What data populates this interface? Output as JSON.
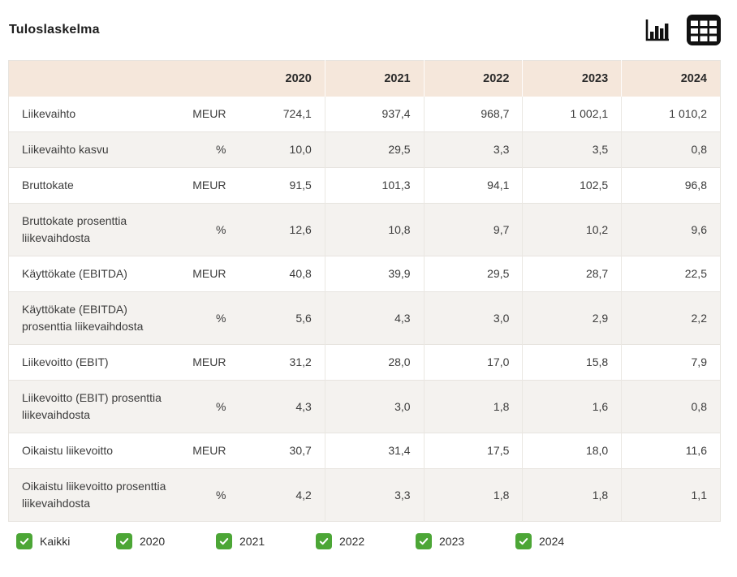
{
  "page": {
    "title": "Tuloslaskelma"
  },
  "toolbar": {
    "views": [
      {
        "id": "chart",
        "icon": "bar-chart-icon",
        "active": false
      },
      {
        "id": "table",
        "icon": "table-grid-icon",
        "active": true
      }
    ]
  },
  "table": {
    "columns": [
      "2020",
      "2021",
      "2022",
      "2023",
      "2024"
    ],
    "rows": [
      {
        "label": "Liikevaihto",
        "unit": "MEUR",
        "values": [
          "724,1",
          "937,4",
          "968,7",
          "1 002,1",
          "1 010,2"
        ]
      },
      {
        "label": "Liikevaihto kasvu",
        "unit": "%",
        "values": [
          "10,0",
          "29,5",
          "3,3",
          "3,5",
          "0,8"
        ]
      },
      {
        "label": "Bruttokate",
        "unit": "MEUR",
        "values": [
          "91,5",
          "101,3",
          "94,1",
          "102,5",
          "96,8"
        ]
      },
      {
        "label": "Bruttokate prosenttia liikevaihdosta",
        "unit": "%",
        "values": [
          "12,6",
          "10,8",
          "9,7",
          "10,2",
          "9,6"
        ]
      },
      {
        "label": "Käyttökate (EBITDA)",
        "unit": "MEUR",
        "values": [
          "40,8",
          "39,9",
          "29,5",
          "28,7",
          "22,5"
        ]
      },
      {
        "label": "Käyttökate (EBITDA) prosenttia liikevaihdosta",
        "unit": "%",
        "values": [
          "5,6",
          "4,3",
          "3,0",
          "2,9",
          "2,2"
        ]
      },
      {
        "label": "Liikevoitto (EBIT)",
        "unit": "MEUR",
        "values": [
          "31,2",
          "28,0",
          "17,0",
          "15,8",
          "7,9"
        ]
      },
      {
        "label": "Liikevoitto (EBIT) prosenttia liikevaihdosta",
        "unit": "%",
        "values": [
          "4,3",
          "3,0",
          "1,8",
          "1,6",
          "0,8"
        ]
      },
      {
        "label": "Oikaistu liikevoitto",
        "unit": "MEUR",
        "values": [
          "30,7",
          "31,4",
          "17,5",
          "18,0",
          "11,6"
        ]
      },
      {
        "label": "Oikaistu liikevoitto prosenttia liikevaihdosta",
        "unit": "%",
        "values": [
          "4,2",
          "3,3",
          "1,8",
          "1,8",
          "1,1"
        ]
      }
    ]
  },
  "filters": {
    "items": [
      {
        "label": "Kaikki",
        "checked": true
      },
      {
        "label": "2020",
        "checked": true
      },
      {
        "label": "2021",
        "checked": true
      },
      {
        "label": "2022",
        "checked": true
      },
      {
        "label": "2023",
        "checked": true
      },
      {
        "label": "2024",
        "checked": true
      }
    ]
  },
  "colors": {
    "header_bg": "#f5e7db",
    "row_alt_bg": "#f4f2ef",
    "border": "#e7e4df",
    "checkbox_green": "#4ca636",
    "text": "#3c3c3c",
    "icon": "#111111"
  }
}
